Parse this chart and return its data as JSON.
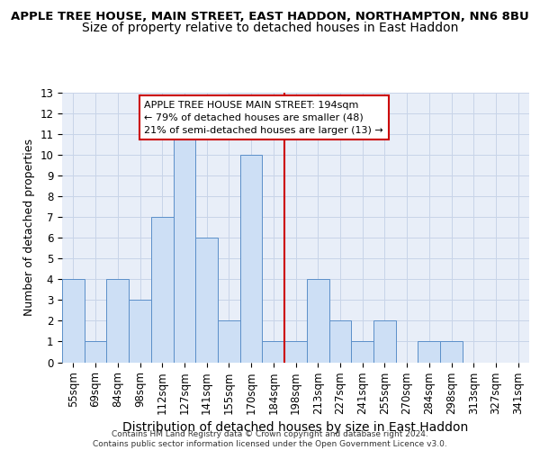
{
  "title_line1": "APPLE TREE HOUSE, MAIN STREET, EAST HADDON, NORTHAMPTON, NN6 8BU",
  "title_line2": "Size of property relative to detached houses in East Haddon",
  "xlabel": "Distribution of detached houses by size in East Haddon",
  "ylabel": "Number of detached properties",
  "categories": [
    "55sqm",
    "69sqm",
    "84sqm",
    "98sqm",
    "112sqm",
    "127sqm",
    "141sqm",
    "155sqm",
    "170sqm",
    "184sqm",
    "198sqm",
    "213sqm",
    "227sqm",
    "241sqm",
    "255sqm",
    "270sqm",
    "284sqm",
    "298sqm",
    "313sqm",
    "327sqm",
    "341sqm"
  ],
  "values": [
    4,
    1,
    4,
    3,
    7,
    11,
    6,
    2,
    10,
    1,
    1,
    4,
    2,
    1,
    2,
    0,
    1,
    1,
    0,
    0,
    0
  ],
  "bar_color": "#cddff5",
  "bar_edge_color": "#5b8fc9",
  "vline_x_idx": 9.5,
  "vline_color": "#cc0000",
  "annotation_text": "APPLE TREE HOUSE MAIN STREET: 194sqm\n← 79% of detached houses are smaller (48)\n21% of semi-detached houses are larger (13) →",
  "annotation_box_color": "#ffffff",
  "annotation_box_edge": "#cc0000",
  "ylim": [
    0,
    13
  ],
  "yticks": [
    0,
    1,
    2,
    3,
    4,
    5,
    6,
    7,
    8,
    9,
    10,
    11,
    12,
    13
  ],
  "grid_color": "#c8d4e8",
  "footer_text": "Contains HM Land Registry data © Crown copyright and database right 2024.\nContains public sector information licensed under the Open Government Licence v3.0.",
  "title1_fontsize": 9.5,
  "title2_fontsize": 10,
  "xlabel_fontsize": 10,
  "ylabel_fontsize": 9,
  "tick_fontsize": 8.5,
  "bg_color": "#e8eef8"
}
